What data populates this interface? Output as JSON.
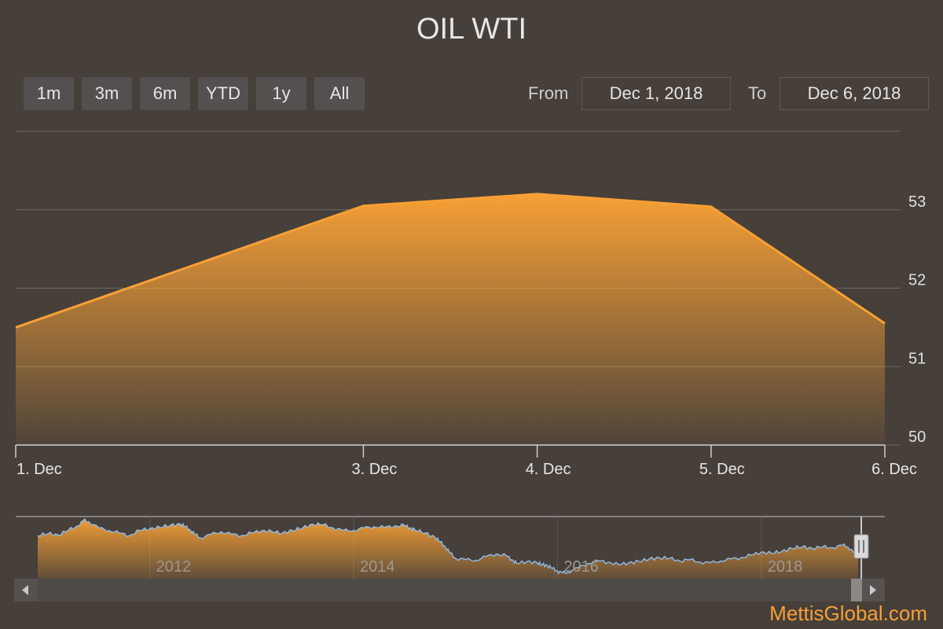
{
  "title": "OIL WTI",
  "range_selector": {
    "buttons": [
      "1m",
      "3m",
      "6m",
      "YTD",
      "1y",
      "All"
    ],
    "from_label": "From",
    "from_value": "Dec 1, 2018",
    "to_label": "To",
    "to_value": "Dec 6, 2018"
  },
  "credit": "MettisGlobal.com",
  "colors": {
    "background": "#463f3a",
    "series": "#f7a035",
    "navigator_line": "#8fb8e0",
    "grid": "#706b67"
  },
  "chart_data": {
    "type": "area",
    "title": "OIL WTI",
    "x": [
      "1. Dec",
      "3. Dec",
      "4. Dec",
      "5. Dec",
      "6. Dec"
    ],
    "x_days": [
      1,
      3,
      4,
      5,
      6
    ],
    "values": [
      51.5,
      53.05,
      53.2,
      53.04,
      51.55
    ],
    "ylim": [
      50,
      54
    ],
    "yticks": [
      50,
      51,
      52,
      53
    ],
    "y_axis_position": "right",
    "grid": true,
    "navigator": {
      "type": "area",
      "year_labels": [
        "2012",
        "2014",
        "2016",
        "2018"
      ],
      "xlim": [
        2010.9,
        2018.95
      ],
      "series": [
        [
          2010.9,
          88
        ],
        [
          2011.0,
          91
        ],
        [
          2011.1,
          89
        ],
        [
          2011.2,
          96
        ],
        [
          2011.3,
          104
        ],
        [
          2011.35,
          112
        ],
        [
          2011.4,
          110
        ],
        [
          2011.5,
          100
        ],
        [
          2011.6,
          96
        ],
        [
          2011.7,
          92
        ],
        [
          2011.8,
          88
        ],
        [
          2011.9,
          96
        ],
        [
          2012.0,
          99
        ],
        [
          2012.1,
          101
        ],
        [
          2012.2,
          104
        ],
        [
          2012.3,
          106
        ],
        [
          2012.35,
          102
        ],
        [
          2012.4,
          96
        ],
        [
          2012.45,
          89
        ],
        [
          2012.5,
          84
        ],
        [
          2012.6,
          90
        ],
        [
          2012.7,
          94
        ],
        [
          2012.8,
          90
        ],
        [
          2012.9,
          88
        ],
        [
          2013.0,
          92
        ],
        [
          2013.1,
          96
        ],
        [
          2013.2,
          94
        ],
        [
          2013.3,
          92
        ],
        [
          2013.4,
          96
        ],
        [
          2013.5,
          100
        ],
        [
          2013.6,
          106
        ],
        [
          2013.7,
          105
        ],
        [
          2013.8,
          100
        ],
        [
          2013.9,
          96
        ],
        [
          2014.0,
          96
        ],
        [
          2014.1,
          100
        ],
        [
          2014.2,
          102
        ],
        [
          2014.3,
          101
        ],
        [
          2014.4,
          103
        ],
        [
          2014.5,
          104
        ],
        [
          2014.55,
          100
        ],
        [
          2014.6,
          97
        ],
        [
          2014.7,
          92
        ],
        [
          2014.8,
          85
        ],
        [
          2014.85,
          78
        ],
        [
          2014.9,
          70
        ],
        [
          2014.95,
          60
        ],
        [
          2015.0,
          52
        ],
        [
          2015.1,
          50
        ],
        [
          2015.2,
          49
        ],
        [
          2015.3,
          55
        ],
        [
          2015.4,
          59
        ],
        [
          2015.5,
          56
        ],
        [
          2015.55,
          50
        ],
        [
          2015.6,
          44
        ],
        [
          2015.7,
          47
        ],
        [
          2015.8,
          45
        ],
        [
          2015.85,
          42
        ],
        [
          2015.9,
          41
        ],
        [
          2015.95,
          36
        ],
        [
          2016.0,
          32
        ],
        [
          2016.05,
          29
        ],
        [
          2016.1,
          30
        ],
        [
          2016.2,
          37
        ],
        [
          2016.3,
          44
        ],
        [
          2016.4,
          48
        ],
        [
          2016.5,
          46
        ],
        [
          2016.6,
          42
        ],
        [
          2016.7,
          45
        ],
        [
          2016.8,
          47
        ],
        [
          2016.9,
          51
        ],
        [
          2017.0,
          53
        ],
        [
          2017.1,
          52
        ],
        [
          2017.2,
          48
        ],
        [
          2017.3,
          50
        ],
        [
          2017.4,
          46
        ],
        [
          2017.5,
          45
        ],
        [
          2017.6,
          48
        ],
        [
          2017.7,
          51
        ],
        [
          2017.8,
          53
        ],
        [
          2017.9,
          57
        ],
        [
          2018.0,
          62
        ],
        [
          2018.1,
          60
        ],
        [
          2018.2,
          63
        ],
        [
          2018.3,
          68
        ],
        [
          2018.4,
          70
        ],
        [
          2018.5,
          68
        ],
        [
          2018.6,
          70
        ],
        [
          2018.7,
          69
        ],
        [
          2018.8,
          73
        ],
        [
          2018.85,
          70
        ],
        [
          2018.9,
          62
        ],
        [
          2018.95,
          52
        ]
      ],
      "ylim": [
        20,
        118
      ]
    }
  }
}
